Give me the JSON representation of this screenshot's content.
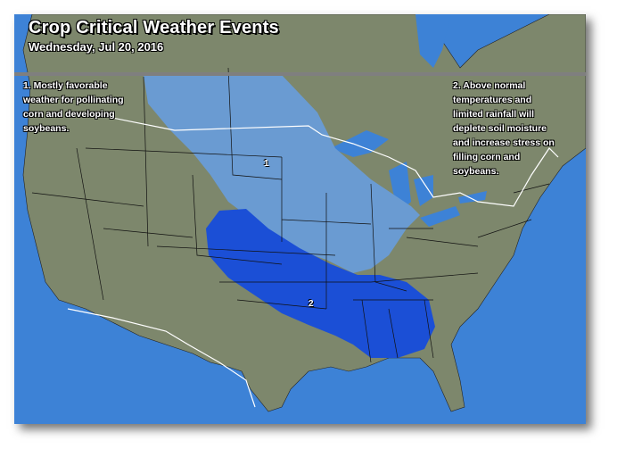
{
  "title": "Crop Critical Weather Events",
  "subtitle": "Wednesday, Jul 20, 2016",
  "notes": [
    {
      "id": "1",
      "text": "1. Mostly favorable\nweather for pollinating\ncorn and developing\nsoybeans."
    },
    {
      "id": "2",
      "text": "2. Above normal\ntemperatures and\nlimited rainfall will\ndeplete soil moisture\nand increase stress on\nfilling corn and\nsoybeans."
    }
  ],
  "regions": [
    {
      "label": "1",
      "color": "#6a9bd2"
    },
    {
      "label": "2",
      "color": "#1b4fd6"
    }
  ],
  "colors": {
    "land": "#7d876c",
    "water": "#3d82d6",
    "header_bar": "#7f7f7f",
    "borders": "#111111",
    "national_border": "#ffffff"
  }
}
